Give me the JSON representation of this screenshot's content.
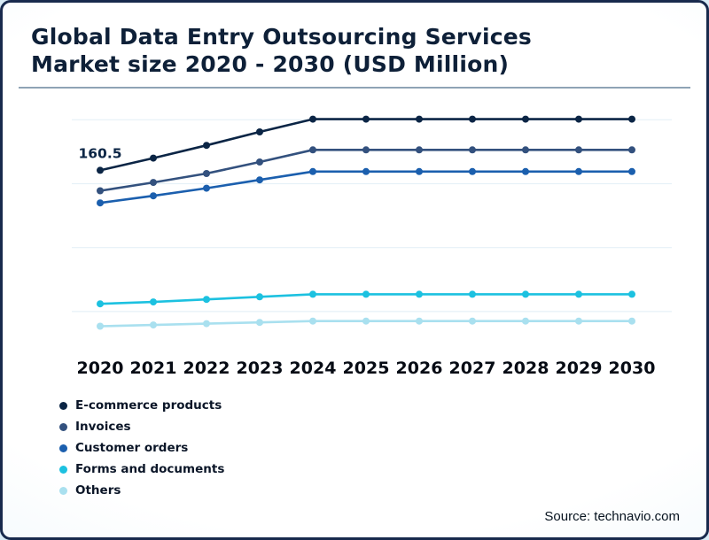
{
  "title": "Global Data Entry Outsourcing Services\nMarket size 2020 - 2030 (USD Million)",
  "source": "Source: technavio.com",
  "colors": {
    "border": "#182a4d",
    "title_text": "#0e2038",
    "divider": "#8fa3b5"
  },
  "chart_data": {
    "type": "line",
    "x": [
      2020,
      2021,
      2022,
      2023,
      2024,
      2025,
      2026,
      2027,
      2028,
      2029,
      2030
    ],
    "series": [
      {
        "name": "E-commerce products",
        "color": "#0b2545",
        "values": [
          160.5,
          170,
          180,
          190.5,
          200.5,
          200.5,
          200.5,
          200.5,
          200.5,
          200.5,
          200.5
        ]
      },
      {
        "name": "Invoices",
        "color": "#33517e",
        "values": [
          144.5,
          151,
          158,
          167,
          176.5,
          176.5,
          176.5,
          176.5,
          176.5,
          176.5,
          176.5
        ]
      },
      {
        "name": "Customer orders",
        "color": "#1b5fae",
        "values": [
          135,
          140.5,
          146.5,
          153,
          159.5,
          159.5,
          159.5,
          159.5,
          159.5,
          159.5,
          159.5
        ]
      },
      {
        "name": "Forms and documents",
        "color": "#1cc1e0",
        "values": [
          56,
          57.5,
          59.5,
          61.5,
          63.5,
          63.5,
          63.5,
          63.5,
          63.5,
          63.5,
          63.5
        ]
      },
      {
        "name": "Others",
        "color": "#a9e0ef",
        "values": [
          38.5,
          39.5,
          40.5,
          41.5,
          42.5,
          42.5,
          42.5,
          42.5,
          42.5,
          42.5,
          42.5
        ]
      }
    ],
    "title": "Global Data Entry Outsourcing Services Market size 2020 - 2030 (USD Million)",
    "xlabel": "",
    "ylabel": "",
    "ylim": [
      25,
      212
    ],
    "grid": true,
    "grid_values": [
      50,
      100,
      150,
      200
    ],
    "legend_position": "bottom-left",
    "annotation": {
      "text": "160.5",
      "series": "E-commerce products",
      "x": 2020
    }
  }
}
